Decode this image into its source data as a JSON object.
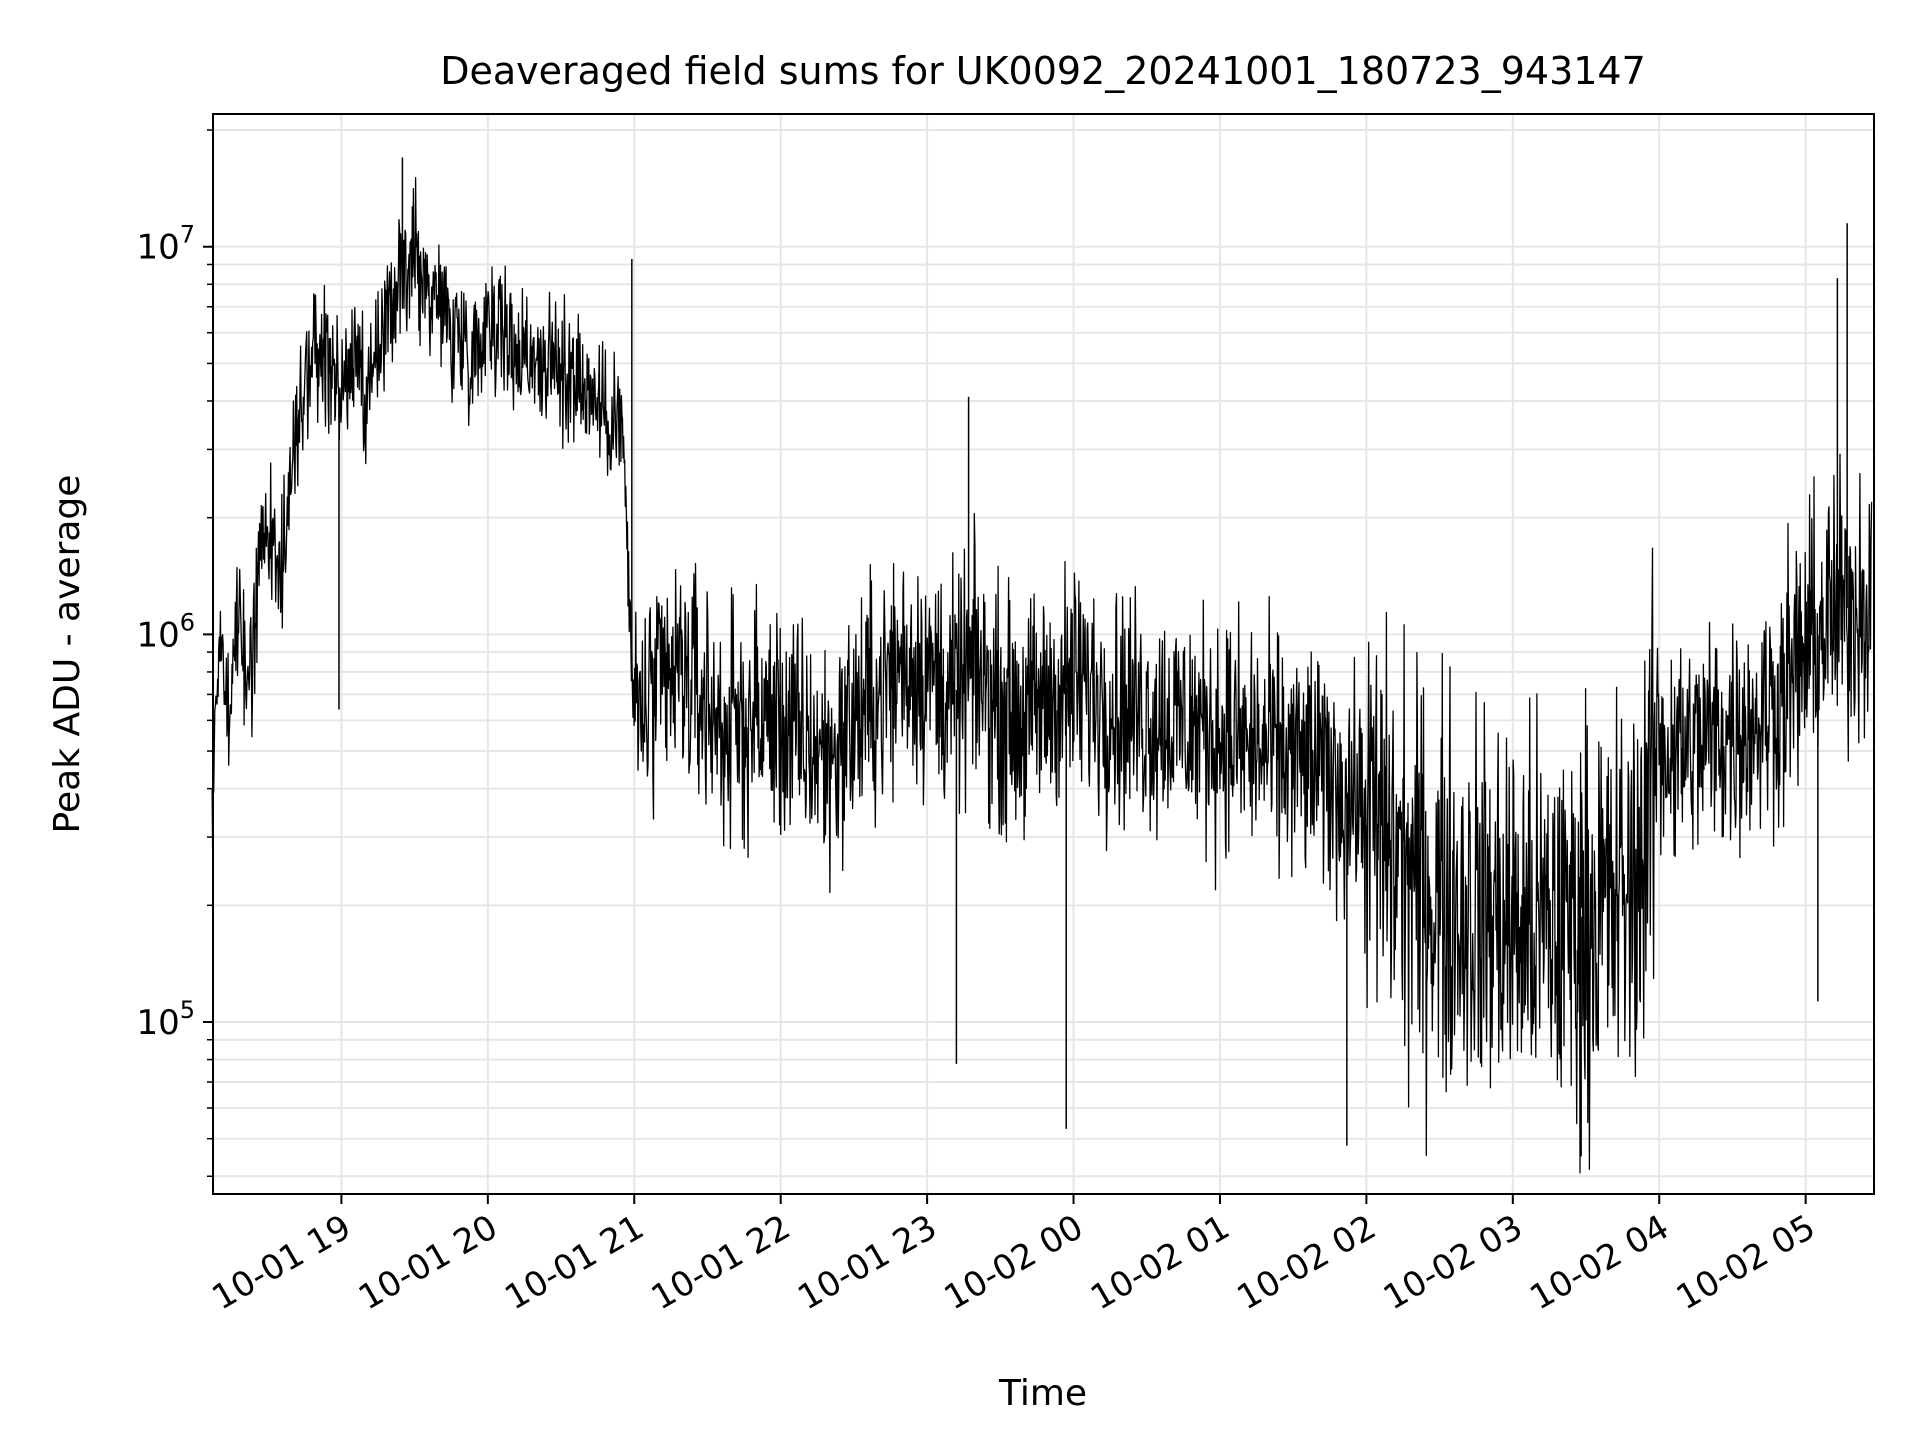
{
  "chart_data": {
    "type": "line",
    "title": "Deaveraged field sums for UK0092_20241001_180723_943147",
    "xlabel": "Time",
    "ylabel": "Peak ADU - average",
    "yscale": "log",
    "xlim": [
      "2024-10-01 18:07:23",
      "2024-10-02 05:28:00"
    ],
    "ylim": [
      36000,
      22000000
    ],
    "grid": true,
    "x_ticks": [
      {
        "time": "2024-10-01 19:00",
        "label": "10-01 19"
      },
      {
        "time": "2024-10-01 20:00",
        "label": "10-01 20"
      },
      {
        "time": "2024-10-01 21:00",
        "label": "10-01 21"
      },
      {
        "time": "2024-10-01 22:00",
        "label": "10-01 22"
      },
      {
        "time": "2024-10-01 23:00",
        "label": "10-01 23"
      },
      {
        "time": "2024-10-02 00:00",
        "label": "10-02 00"
      },
      {
        "time": "2024-10-02 01:00",
        "label": "10-02 01"
      },
      {
        "time": "2024-10-02 02:00",
        "label": "10-02 02"
      },
      {
        "time": "2024-10-02 03:00",
        "label": "10-02 03"
      },
      {
        "time": "2024-10-02 04:00",
        "label": "10-02 04"
      },
      {
        "time": "2024-10-02 05:00",
        "label": "10-02 05"
      }
    ],
    "y_ticks": [
      {
        "value": 100000,
        "base": "10",
        "exp": "5"
      },
      {
        "value": 1000000,
        "base": "10",
        "exp": "6"
      },
      {
        "value": 10000000,
        "base": "10",
        "exp": "7"
      }
    ],
    "series": [
      {
        "color": "#000000",
        "points": [
          [
            "2024-10-01 18:07",
            350000
          ],
          [
            "2024-10-01 18:10",
            1100000
          ],
          [
            "2024-10-01 18:14",
            600000
          ],
          [
            "2024-10-01 18:18",
            1300000
          ],
          [
            "2024-10-01 18:22",
            700000
          ],
          [
            "2024-10-01 18:26",
            1500000
          ],
          [
            "2024-10-01 18:30",
            1900000
          ],
          [
            "2024-10-01 18:35",
            1400000
          ],
          [
            "2024-10-01 18:40",
            2700000
          ],
          [
            "2024-10-01 18:45",
            4300000
          ],
          [
            "2024-10-01 18:50",
            5500000
          ],
          [
            "2024-10-01 18:55",
            4800000
          ],
          [
            "2024-10-01 19:00",
            4200000
          ],
          [
            "2024-10-01 19:05",
            5200000
          ],
          [
            "2024-10-01 19:10",
            3600000
          ],
          [
            "2024-10-01 19:15",
            5400000
          ],
          [
            "2024-10-01 19:20",
            6600000
          ],
          [
            "2024-10-01 19:25",
            8500000
          ],
          [
            "2024-10-01 19:30",
            9500000
          ],
          [
            "2024-10-01 19:35",
            7800000
          ],
          [
            "2024-10-01 19:40",
            7400000
          ],
          [
            "2024-10-01 19:45",
            6200000
          ],
          [
            "2024-10-01 19:50",
            5800000
          ],
          [
            "2024-10-01 19:55",
            5300000
          ],
          [
            "2024-10-01 20:00",
            6800000
          ],
          [
            "2024-10-01 20:05",
            6500000
          ],
          [
            "2024-10-01 20:10",
            5300000
          ],
          [
            "2024-10-01 20:15",
            5600000
          ],
          [
            "2024-10-01 20:20",
            5100000
          ],
          [
            "2024-10-01 20:25",
            5000000
          ],
          [
            "2024-10-01 20:30",
            4700000
          ],
          [
            "2024-10-01 20:35",
            4900000
          ],
          [
            "2024-10-01 20:40",
            4300000
          ],
          [
            "2024-10-01 20:45",
            3900000
          ],
          [
            "2024-10-01 20:50",
            3700000
          ],
          [
            "2024-10-01 20:55",
            3500000
          ],
          [
            "2024-10-01 21:00",
            600000
          ],
          [
            "2024-10-01 21:10",
            700000
          ],
          [
            "2024-10-01 21:20",
            800000
          ],
          [
            "2024-10-01 21:30",
            650000
          ],
          [
            "2024-10-01 21:40",
            550000
          ],
          [
            "2024-10-01 21:50",
            620000
          ],
          [
            "2024-10-01 22:00",
            580000
          ],
          [
            "2024-10-01 22:10",
            520000
          ],
          [
            "2024-10-01 22:20",
            480000
          ],
          [
            "2024-10-01 22:30",
            600000
          ],
          [
            "2024-10-01 22:40",
            700000
          ],
          [
            "2024-10-01 22:50",
            850000
          ],
          [
            "2024-10-01 23:00",
            800000
          ],
          [
            "2024-10-01 23:10",
            700000
          ],
          [
            "2024-10-01 23:20",
            800000
          ],
          [
            "2024-10-01 23:30",
            650000
          ],
          [
            "2024-10-01 23:40",
            600000
          ],
          [
            "2024-10-01 23:50",
            680000
          ],
          [
            "2024-10-02 00:00",
            750000
          ],
          [
            "2024-10-02 00:10",
            700000
          ],
          [
            "2024-10-02 00:20",
            650000
          ],
          [
            "2024-10-02 00:30",
            620000
          ],
          [
            "2024-10-02 00:40",
            600000
          ],
          [
            "2024-10-02 00:50",
            580000
          ],
          [
            "2024-10-02 01:00",
            560000
          ],
          [
            "2024-10-02 01:10",
            520000
          ],
          [
            "2024-10-02 01:20",
            500000
          ],
          [
            "2024-10-02 01:30",
            480000
          ],
          [
            "2024-10-02 01:40",
            450000
          ],
          [
            "2024-10-02 01:50",
            400000
          ],
          [
            "2024-10-02 02:00",
            350000
          ],
          [
            "2024-10-02 02:10",
            280000
          ],
          [
            "2024-10-02 02:20",
            230000
          ],
          [
            "2024-10-02 02:30",
            210000
          ],
          [
            "2024-10-02 02:40",
            200000
          ],
          [
            "2024-10-02 02:50",
            190000
          ],
          [
            "2024-10-02 03:00",
            180000
          ],
          [
            "2024-10-02 03:10",
            170000
          ],
          [
            "2024-10-02 03:20",
            175000
          ],
          [
            "2024-10-02 03:30",
            190000
          ],
          [
            "2024-10-02 03:40",
            200000
          ],
          [
            "2024-10-02 03:50",
            220000
          ],
          [
            "2024-10-02 04:00",
            520000
          ],
          [
            "2024-10-02 04:10",
            500000
          ],
          [
            "2024-10-02 04:20",
            540000
          ],
          [
            "2024-10-02 04:30",
            560000
          ],
          [
            "2024-10-02 04:40",
            600000
          ],
          [
            "2024-10-02 04:50",
            700000
          ],
          [
            "2024-10-02 05:00",
            900000
          ],
          [
            "2024-10-02 05:10",
            1100000
          ],
          [
            "2024-10-02 05:20",
            1200000
          ],
          [
            "2024-10-02 05:27",
            1300000
          ]
        ],
        "notable_values": [
          [
            "2024-10-01 19:25",
            17000000
          ],
          [
            "2024-10-01 18:59",
            640000
          ],
          [
            "2024-10-01 20:59",
            9300000
          ],
          [
            "2024-10-01 23:17",
            4100000
          ],
          [
            "2024-10-01 23:12",
            78000
          ],
          [
            "2024-10-01 23:57",
            53000
          ],
          [
            "2024-10-02 01:52",
            48000
          ],
          [
            "2024-10-02 03:28",
            45000
          ],
          [
            "2024-10-02 05:17",
            11500000
          ],
          [
            "2024-10-02 05:13",
            8300000
          ],
          [
            "2024-10-02 05:05",
            113000
          ]
        ]
      }
    ]
  }
}
